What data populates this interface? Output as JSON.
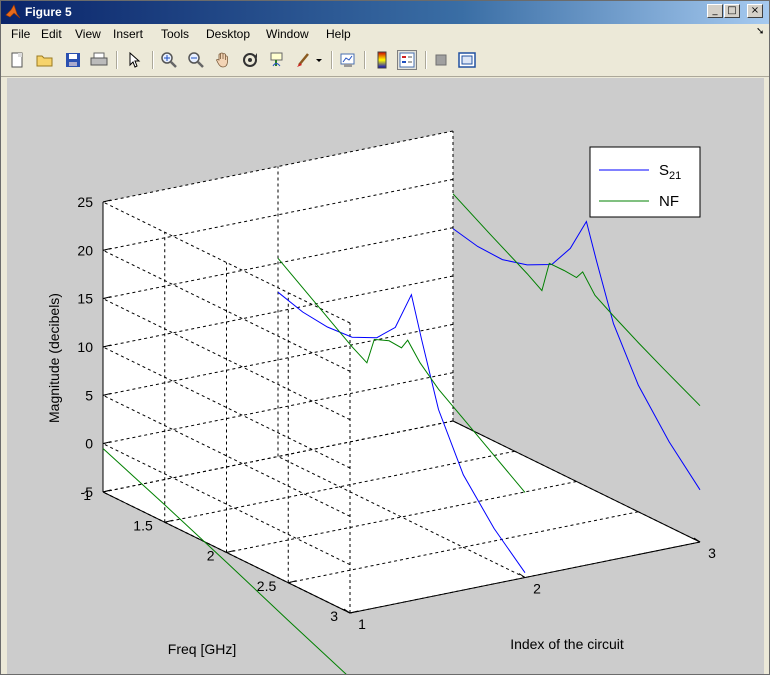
{
  "window": {
    "title": "Figure 5"
  },
  "menu": [
    "File",
    "Edit",
    "View",
    "Insert",
    "Tools",
    "Desktop",
    "Window",
    "Help"
  ],
  "toolbar": {
    "buttons": [
      "new-figure-icon",
      "open-file-icon",
      "save-icon",
      "print-icon",
      "edit-plot-icon",
      "zoom-in-icon",
      "zoom-out-icon",
      "pan-icon",
      "rotate-3d-icon",
      "data-cursor-icon",
      "brush-icon",
      "link-plot-icon",
      "colorbar-icon",
      "legend-icon",
      "hide-plot-tools-icon",
      "show-plot-tools-icon"
    ]
  },
  "colors": {
    "s21": "#0000ff",
    "nf": "#008000",
    "canvas": "#cccccc"
  },
  "chart_data": {
    "type": "line",
    "subtype": "3d",
    "xlabel": "Index of the circuit",
    "ylabel": "Freq [GHz]",
    "zlabel": "Magnitude (decibels)",
    "xticks": [
      "1",
      "2",
      "3"
    ],
    "yticks": [
      "1",
      "1.5",
      "2",
      "2.5",
      "3"
    ],
    "zticks": [
      "-5",
      "0",
      "5",
      "10",
      "15",
      "20",
      "25"
    ],
    "xlim": [
      1,
      3
    ],
    "ylim": [
      1,
      3
    ],
    "zlim": [
      -5,
      25
    ],
    "grid": true,
    "legend": {
      "position": "top-right",
      "entries": [
        {
          "name_main": "S",
          "name_sub": "21",
          "color": "#0000ff"
        },
        {
          "name_main": "NF",
          "name_sub": "",
          "color": "#008000"
        }
      ]
    },
    "series": [
      {
        "name": "S21",
        "circuit": 2,
        "color": "#0000ff",
        "points": [
          [
            1,
            12
          ],
          [
            1.2,
            11.2
          ],
          [
            1.4,
            10.9
          ],
          [
            1.6,
            11.1
          ],
          [
            1.8,
            12.3
          ],
          [
            1.95,
            14.3
          ],
          [
            2.08,
            18.5
          ],
          [
            2.16,
            14.5
          ],
          [
            2.3,
            8
          ],
          [
            2.5,
            2.5
          ],
          [
            2.75,
            -1.5
          ],
          [
            3,
            -4.5
          ]
        ]
      },
      {
        "name": "NF",
        "circuit": 2,
        "color": "#008000",
        "points": [
          [
            1,
            15.5
          ],
          [
            1.3,
            12.8
          ],
          [
            1.6,
            10.1
          ],
          [
            1.72,
            9.2
          ],
          [
            1.78,
            12
          ],
          [
            1.9,
            12.6
          ],
          [
            2.0,
            12.5
          ],
          [
            2.05,
            13.6
          ],
          [
            2.15,
            11.9
          ],
          [
            2.3,
            10.1
          ],
          [
            2.5,
            8.3
          ],
          [
            2.7,
            6.5
          ],
          [
            3,
            3.8
          ]
        ]
      },
      {
        "name": "S21",
        "circuit": 3,
        "color": "#0000ff",
        "points": [
          [
            1,
            14.9
          ],
          [
            1.2,
            14.3
          ],
          [
            1.4,
            14.2
          ],
          [
            1.6,
            14.9
          ],
          [
            1.8,
            16.2
          ],
          [
            1.95,
            18.8
          ],
          [
            2.08,
            22.4
          ],
          [
            2.16,
            18.9
          ],
          [
            2.3,
            13.2
          ],
          [
            2.5,
            8.1
          ],
          [
            2.75,
            3.8
          ],
          [
            3,
            0.4
          ]
        ]
      },
      {
        "name": "NF",
        "circuit": 3,
        "color": "#008000",
        "points": [
          [
            1,
            18.5
          ],
          [
            1.3,
            16.2
          ],
          [
            1.6,
            14.0
          ],
          [
            1.72,
            13.0
          ],
          [
            1.78,
            16.2
          ],
          [
            1.9,
            16.2
          ],
          [
            2.0,
            16.1
          ],
          [
            2.05,
            17.0
          ],
          [
            2.15,
            15.2
          ],
          [
            2.3,
            14.0
          ],
          [
            2.5,
            12.5
          ],
          [
            2.7,
            11.1
          ],
          [
            3,
            9.1
          ]
        ]
      },
      {
        "name": "NF",
        "circuit": 1,
        "color": "#008000",
        "points": [
          [
            1,
            -0.5
          ],
          [
            1.5,
            -3.2
          ],
          [
            2,
            -6.0
          ],
          [
            2.5,
            -8.9
          ],
          [
            3,
            -11.7
          ]
        ]
      }
    ]
  }
}
